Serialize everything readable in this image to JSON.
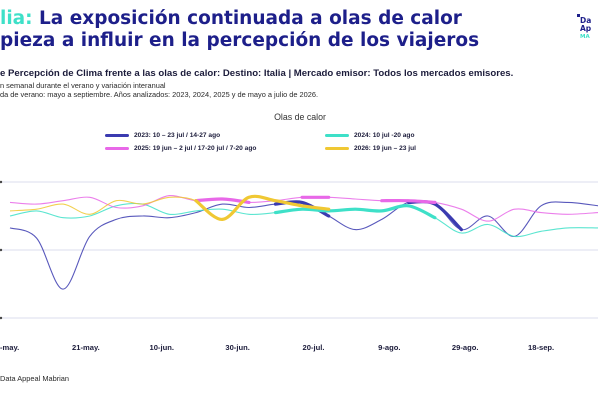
{
  "header": {
    "title_accent": "lia:",
    "title_line1": " La exposición continuada a olas de calor",
    "title_line2": "pieza a influir en la percepción de los viajeros"
  },
  "logo": {
    "line1": "Da",
    "line2": "Ap",
    "line3": "MA"
  },
  "subtitle": "e Percepción de Clima frente a las olas de calor: Destino: Italia | Mercado emisor: Todos los mercados emisores.",
  "description": [
    "n semanal durante el verano y variación interanual",
    "da de verano: mayo a septiembre. Años analizados: 2023, 2024, 2025 y de mayo a julio de 2026."
  ],
  "source": "Data Appeal Mabrian",
  "colors": {
    "s2023": "#3b3bb0",
    "s2024": "#3ee0c8",
    "s2025": "#e868e8",
    "s2026": "#f0c833",
    "accent": "#3ee0c8",
    "brand": "#1d1f8a",
    "grid": "#cfd0e6"
  },
  "chart_data": {
    "type": "line",
    "title": "Olas de calor",
    "xlabel": "",
    "ylabel": "",
    "x_tick_labels": [
      "-may.",
      "21-may.",
      "10-jun.",
      "30-jun.",
      "20-jul.",
      "9-ago.",
      "29-ago.",
      "18-sep."
    ],
    "x_tick_positions": [
      0,
      20,
      40,
      60,
      80,
      100,
      120,
      140
    ],
    "xlim": [
      0,
      155
    ],
    "ylim": [
      0,
      100
    ],
    "y_gridlines": [
      10,
      50,
      90
    ],
    "y_tick_labels": [
      "",
      "",
      ""
    ],
    "grid": true,
    "legend_position": "top",
    "legend": [
      {
        "label": "2023: 10 – 23 jul / 14-27 ago",
        "key": "s2023"
      },
      {
        "label": "2024: 10 jul -20 ago",
        "key": "s2024"
      },
      {
        "label": "2025: 19 jun – 2 jul / 17-20 jul / 7-20 ago",
        "key": "s2025"
      },
      {
        "label": "2026: 19 jun – 23 jul",
        "key": "s2026"
      }
    ],
    "series": [
      {
        "name": "2023",
        "key": "s2023",
        "x": [
          0,
          7,
          14,
          21,
          28,
          35,
          42,
          49,
          56,
          63,
          70,
          77,
          84,
          91,
          98,
          105,
          112,
          119,
          126,
          133,
          140,
          147,
          155
        ],
        "y": [
          63,
          57,
          27,
          58,
          68,
          70,
          69,
          72,
          77,
          75,
          77,
          78,
          70,
          62,
          68,
          78,
          77,
          62,
          70,
          58,
          76,
          78,
          76
        ],
        "highlights": [
          [
            70,
            84
          ],
          [
            105,
            119
          ]
        ]
      },
      {
        "name": "2024",
        "key": "s2024",
        "x": [
          0,
          7,
          14,
          21,
          28,
          35,
          42,
          49,
          56,
          63,
          70,
          77,
          84,
          91,
          98,
          105,
          112,
          119,
          126,
          133,
          140,
          147,
          155
        ],
        "y": [
          70,
          73,
          69,
          70,
          76,
          77,
          71,
          73,
          74,
          71,
          72,
          74,
          73,
          74,
          73,
          76,
          69,
          60,
          65,
          58,
          61,
          63,
          63
        ],
        "highlights": [
          [
            70,
            112
          ]
        ]
      },
      {
        "name": "2025",
        "key": "s2025",
        "x": [
          0,
          7,
          14,
          21,
          28,
          35,
          42,
          49,
          56,
          63,
          70,
          77,
          84,
          91,
          98,
          105,
          112,
          119,
          126,
          133,
          140,
          147,
          155
        ],
        "y": [
          78,
          77,
          79,
          81,
          75,
          76,
          82,
          79,
          80,
          78,
          79,
          81,
          81,
          80,
          79,
          79,
          78,
          74,
          67,
          74,
          72,
          71,
          72
        ],
        "highlights": [
          [
            49,
            63
          ],
          [
            77,
            84
          ],
          [
            98,
            112
          ]
        ]
      },
      {
        "name": "2026",
        "key": "s2026",
        "x": [
          0,
          7,
          14,
          21,
          28,
          35,
          42,
          49,
          56,
          63,
          70,
          77,
          84
        ],
        "y": [
          73,
          74,
          77,
          71,
          79,
          77,
          81,
          79,
          68,
          81,
          79,
          76,
          74
        ],
        "highlights": [
          [
            49,
            84
          ]
        ]
      }
    ]
  }
}
